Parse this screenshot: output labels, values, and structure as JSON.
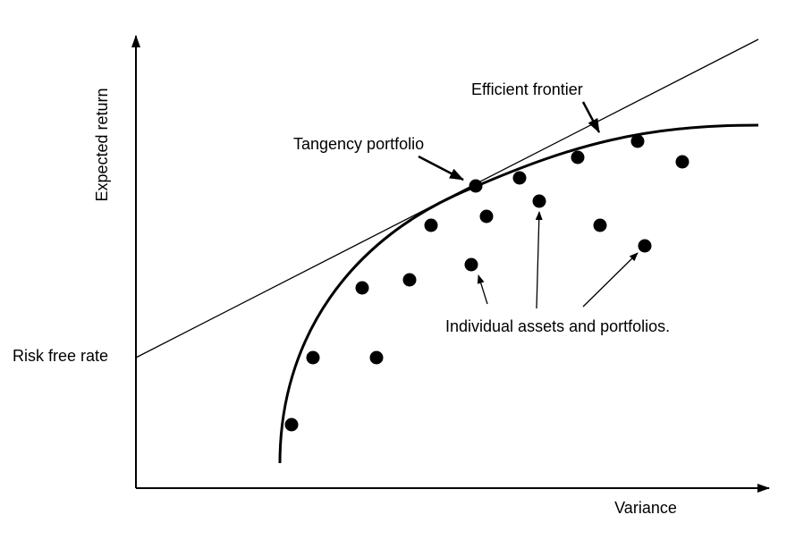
{
  "labels": {
    "y_axis": "Expected return",
    "x_axis": "Variance",
    "risk_free_rate": "Risk free rate",
    "efficient_frontier": "Efficient frontier",
    "tangency_portfolio": "Tangency portfolio",
    "individual_assets": "Individual assets and portfolios."
  },
  "colors": {
    "ink": "#000000",
    "background": "#ffffff"
  }
}
